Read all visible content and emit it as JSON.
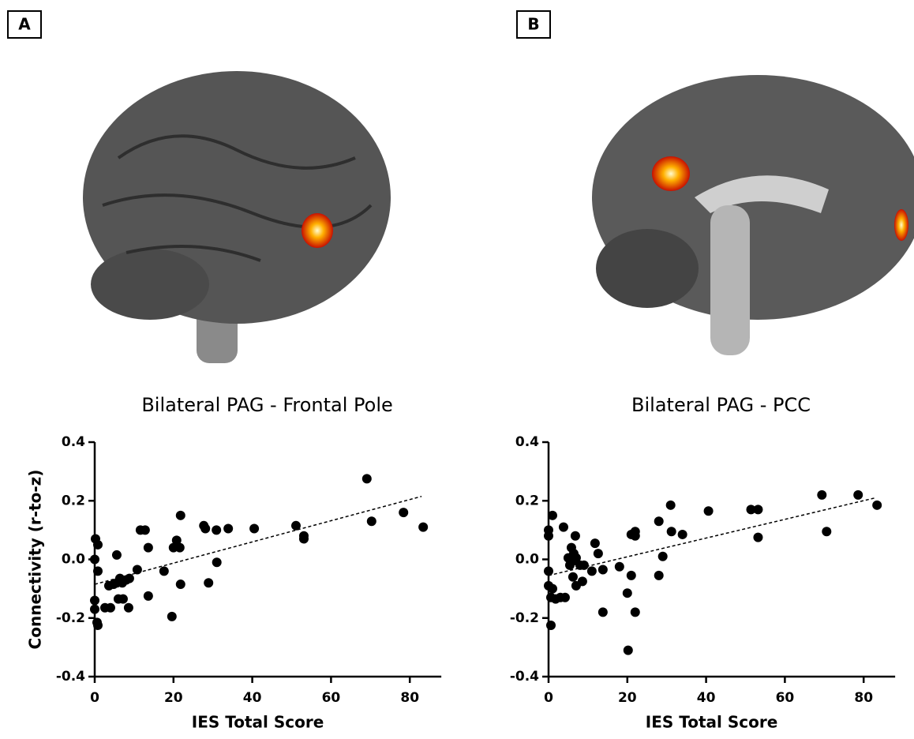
{
  "chart_data": [
    {
      "type": "scatter",
      "panel_label": "A",
      "title": "Bilateral PAG - Frontal Pole",
      "x_label": "IES Total Score",
      "y_label": "Connectivity (r-to-z)",
      "xlim": [
        0,
        88
      ],
      "ylim": [
        -0.4,
        0.4
      ],
      "xticks": [
        0,
        20,
        40,
        60,
        80
      ],
      "yticks": [
        0.4,
        0.2,
        {
          "value": 0,
          "label": "0.0"
        },
        -0.2,
        -0.4
      ],
      "color": "#000000",
      "x": [
        0.2,
        0.8,
        0,
        0.8,
        0,
        0,
        0.6,
        0.8,
        2.6,
        4,
        3.6,
        4.8,
        5.6,
        5.6,
        6.4,
        6,
        7.2,
        7,
        8,
        8.6,
        8.8,
        10.8,
        11.6,
        12.8,
        13.6,
        13.6,
        17.6,
        19.6,
        20,
        20.8,
        21.6,
        21.8,
        21.8,
        27.7,
        28.1,
        28.9,
        31,
        30.9,
        33.9,
        40.5,
        51.1,
        53.1,
        53.1,
        69.1,
        70.3,
        78.4,
        83.4
      ],
      "values": [
        0.07,
        0.05,
        0,
        -0.04,
        -0.14,
        -0.17,
        -0.215,
        -0.225,
        -0.165,
        -0.165,
        -0.09,
        -0.085,
        0.015,
        -0.08,
        -0.065,
        -0.135,
        -0.135,
        -0.08,
        -0.07,
        -0.165,
        -0.065,
        -0.035,
        0.1,
        0.1,
        0.04,
        -0.125,
        -0.04,
        -0.195,
        0.04,
        0.065,
        0.04,
        0.15,
        -0.085,
        0.115,
        0.105,
        -0.08,
        -0.01,
        0.1,
        0.105,
        0.105,
        0.115,
        0.08,
        0.07,
        0.275,
        0.13,
        0.16,
        0.11
      ],
      "trend_x": [
        0,
        83
      ],
      "trend_values": [
        -0.085,
        0.215
      ]
    },
    {
      "type": "scatter",
      "panel_label": "B",
      "title": "Bilateral PAG - PCC",
      "x_label": "IES Total Score",
      "xlim": [
        0,
        88
      ],
      "ylim": [
        -0.4,
        0.4
      ],
      "xticks": [
        0,
        20,
        40,
        60,
        80
      ],
      "yticks": [
        0.4,
        0.2,
        {
          "value": 0,
          "label": "0.0"
        },
        -0.2,
        -0.4
      ],
      "color": "#000000",
      "x": [
        1,
        0,
        0,
        0,
        0,
        0.6,
        0.6,
        1,
        1.8,
        3,
        3.8,
        4.2,
        5,
        5.4,
        5.8,
        6.2,
        6.4,
        6.8,
        6.2,
        7,
        7,
        8,
        8.6,
        9,
        11,
        11.8,
        12.6,
        13.8,
        13.8,
        18,
        20,
        20.2,
        21,
        21,
        22,
        22,
        22,
        28,
        28,
        29,
        31,
        31.2,
        34,
        40.6,
        51.4,
        53.2,
        53.2,
        69.4,
        70.6,
        78.6,
        83.4
      ],
      "values": [
        0.15,
        0.1,
        0.08,
        -0.04,
        -0.09,
        -0.13,
        -0.225,
        -0.1,
        -0.135,
        -0.13,
        0.11,
        -0.13,
        0.005,
        -0.02,
        0.04,
        -0.005,
        0.02,
        0.08,
        -0.06,
        0.005,
        -0.09,
        -0.02,
        -0.075,
        -0.02,
        -0.04,
        0.055,
        0.02,
        -0.035,
        -0.18,
        -0.025,
        -0.115,
        -0.31,
        -0.055,
        0.085,
        0.08,
        0.095,
        -0.18,
        0.13,
        -0.055,
        0.01,
        0.185,
        0.095,
        0.085,
        0.165,
        0.17,
        0.17,
        0.075,
        0.22,
        0.095,
        0.22,
        0.185
      ],
      "trend_x": [
        0,
        83
      ],
      "trend_values": [
        -0.055,
        0.21
      ]
    }
  ]
}
